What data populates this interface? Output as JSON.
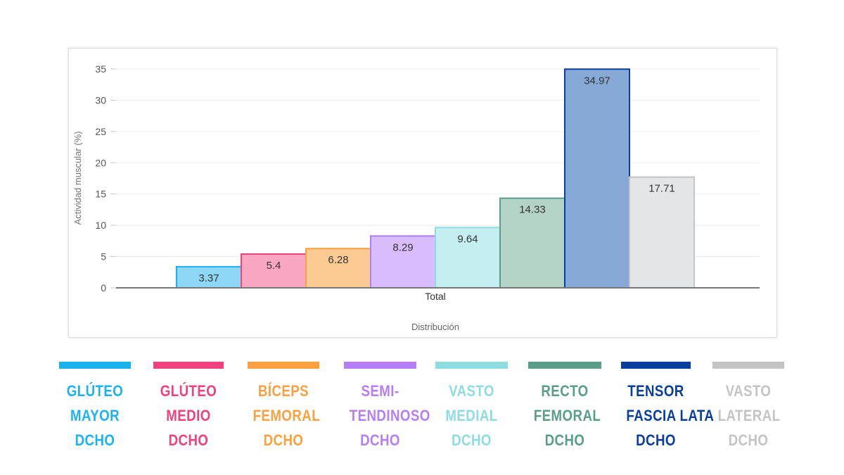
{
  "chart_data": {
    "type": "bar",
    "xlabel": "Distribución",
    "ylabel": "Actividad muscular (%)",
    "category": "Total",
    "ylim": [
      0,
      35
    ],
    "yticks": [
      0,
      5,
      10,
      15,
      20,
      25,
      30,
      35
    ],
    "grid": true,
    "series": [
      {
        "name": "GLÚTEO MAYOR DCHO",
        "lines": [
          "GLÚTEO",
          "MAYOR",
          "DCHO"
        ],
        "value": 3.37,
        "label": "3.37",
        "color": "#1cb3ec",
        "fill": "#8ed8f5"
      },
      {
        "name": "GLÚTEO MEDIO DCHO",
        "lines": [
          "GLÚTEO",
          "MEDIO",
          "DCHO"
        ],
        "value": 5.4,
        "label": "5.4",
        "color": "#f0417f",
        "fill": "#f9a6c3"
      },
      {
        "name": "BÍCEPS FEMORAL DCHO",
        "lines": [
          "BÍCEPS",
          "FEMORAL",
          "DCHO"
        ],
        "value": 6.28,
        "label": "6.28",
        "color": "#f9a141",
        "fill": "#fccb94"
      },
      {
        "name": "SEMI-TENDINOSO DCHO",
        "lines": [
          "SEMI-",
          "TENDINOSO",
          "DCHO"
        ],
        "value": 8.29,
        "label": "8.29",
        "color": "#b57ef5",
        "fill": "#d9bcfb"
      },
      {
        "name": "VASTO MEDIAL DCHO",
        "lines": [
          "VASTO",
          "MEDIAL",
          "DCHO"
        ],
        "value": 9.64,
        "label": "9.64",
        "color": "#8ddce2",
        "fill": "#c5eef0"
      },
      {
        "name": "RECTO FEMORAL DCHO",
        "lines": [
          "RECTO",
          "FEMORAL",
          "DCHO"
        ],
        "value": 14.33,
        "label": "14.33",
        "color": "#5a9e8a",
        "fill": "#b3d3c6"
      },
      {
        "name": "TENSOR FASCIA LATA DCHO",
        "lines": [
          "TENSOR",
          "FASCIA LATA",
          "DCHO"
        ],
        "value": 34.97,
        "label": "34.97",
        "color": "#0a3e9d",
        "fill": "#87a9d6"
      },
      {
        "name": "VASTO LATERAL DCHO",
        "lines": [
          "VASTO",
          "LATERAL",
          "DCHO"
        ],
        "value": 17.71,
        "label": "17.71",
        "color": "#c4c4c4",
        "fill": "#e4e5e7"
      }
    ]
  }
}
